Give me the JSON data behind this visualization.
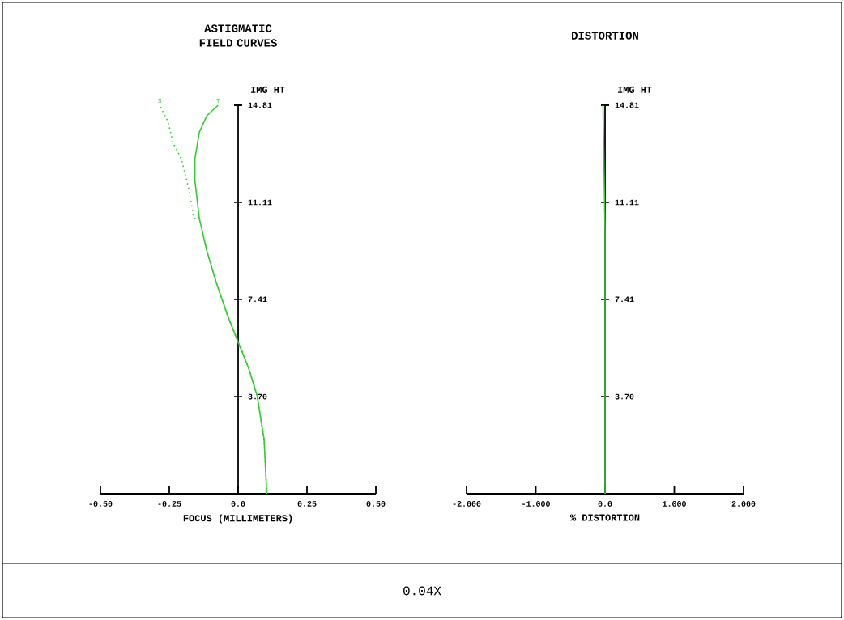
{
  "chart_data": [
    {
      "type": "line",
      "title": "ASTIGMATIC FIELD CURVES",
      "xlabel": "FOCUS (MILLIMETERS)",
      "ylabel": "IMG HT",
      "xlim": [
        -0.5,
        0.5
      ],
      "xticks": [
        {
          "value": -0.5,
          "label": "-0.50"
        },
        {
          "value": -0.25,
          "label": "-0.25"
        },
        {
          "value": 0,
          "label": "0.0"
        },
        {
          "value": 0.25,
          "label": "0.25"
        },
        {
          "value": 0.5,
          "label": "0.50"
        }
      ],
      "ylim": [
        0,
        14.81
      ],
      "yticks": [
        {
          "value": 3.7,
          "label": "3.70"
        },
        7.41,
        11.11,
        14.81
      ],
      "series": [
        {
          "name": "S",
          "color": "#33cc33",
          "line_style": "dotted",
          "x": [
            0.104,
            0.094,
            0.069,
            0.039,
            0,
            -0.039,
            -0.079,
            -0.114,
            -0.141,
            -0.161,
            -0.177,
            -0.206,
            -0.236,
            -0.255,
            -0.285
          ],
          "values": [
            0,
            2.09,
            3.73,
            4.76,
            5.78,
            6.81,
            8.04,
            9.27,
            10.5,
            10.5,
            11.53,
            12.76,
            13.37,
            14.19,
            14.81
          ]
        },
        {
          "name": "T",
          "color": "#33cc33",
          "line_style": "solid",
          "x": [
            0.104,
            0.094,
            0.069,
            0.039,
            0,
            -0.039,
            -0.079,
            -0.114,
            -0.141,
            -0.157,
            -0.157,
            -0.141,
            -0.114,
            -0.073
          ],
          "values": [
            0,
            2.09,
            3.73,
            4.76,
            5.78,
            6.81,
            8.04,
            9.27,
            10.5,
            11.94,
            12.76,
            13.78,
            14.4,
            14.81
          ]
        }
      ],
      "annotations": [
        "0.04X"
      ]
    },
    {
      "type": "line",
      "title": "DISTORTION",
      "xlabel": "% DISTORTION",
      "ylabel": "IMG HT",
      "xlim": [
        -2,
        2
      ],
      "xticks": [
        {
          "value": -2,
          "label": "-2.000"
        },
        {
          "value": -1,
          "label": "-1.000"
        },
        {
          "value": 0,
          "label": "0.0"
        },
        {
          "value": 1,
          "label": "1.000"
        },
        {
          "value": 2,
          "label": "2.000"
        }
      ],
      "ylim": [
        0,
        14.81
      ],
      "yticks": [
        {
          "value": 3.7,
          "label": "3.70"
        },
        7.41,
        11.11,
        14.81
      ],
      "series": [
        {
          "color": "#33cc33",
          "line_style": "solid",
          "x": [
            0,
            0,
            -0.03
          ],
          "values": [
            0,
            10,
            14.81
          ]
        }
      ]
    }
  ]
}
